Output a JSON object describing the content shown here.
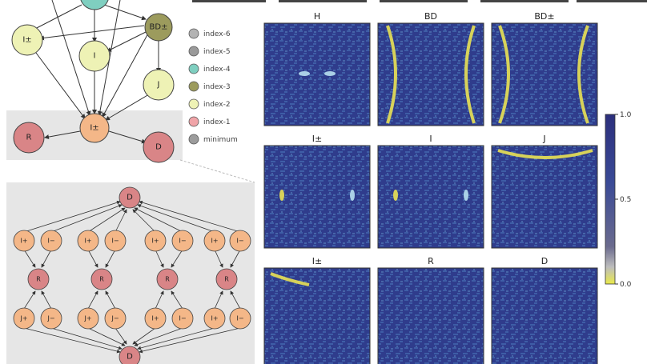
{
  "graph_top": {
    "nodes": [
      {
        "id": "n-index7",
        "label": "",
        "color": "#7fcfc0"
      },
      {
        "id": "n-BD_pm",
        "label": "BD±",
        "color": "#9c9b5d"
      },
      {
        "id": "n-I_pm",
        "label": "I±",
        "color": "#eef2b5"
      },
      {
        "id": "n-I",
        "label": "I",
        "color": "#eef2b5"
      },
      {
        "id": "n-J",
        "label": "J",
        "color": "#eef2b5"
      },
      {
        "id": "n-Ipm2",
        "label": "I±",
        "color": "#f4b788"
      },
      {
        "id": "n-R",
        "label": "R",
        "color": "#d98587"
      },
      {
        "id": "n-D",
        "label": "D",
        "color": "#d98587"
      }
    ]
  },
  "legend": {
    "items": [
      {
        "label": "index-6",
        "color": "#b3b3b3"
      },
      {
        "label": "index-5",
        "color": "#9a9a9a"
      },
      {
        "label": "index-4",
        "color": "#7fcfc0"
      },
      {
        "label": "index-3",
        "color": "#9c9b5d"
      },
      {
        "label": "index-2",
        "color": "#eef2b5"
      },
      {
        "label": "index-1",
        "color": "#f0a4a8"
      },
      {
        "label": "minimum",
        "color": "#9c9c9c"
      }
    ]
  },
  "graph_bottom": {
    "top_node": "D",
    "bottom_node": "D",
    "row1": [
      "I+",
      "I−",
      "I+",
      "I−",
      "I+",
      "I−",
      "I+",
      "I−"
    ],
    "row2": [
      "R",
      "R",
      "R",
      "R"
    ],
    "row3": [
      "J+",
      "J−",
      "J+",
      "J−",
      "I+",
      "I−",
      "I+",
      "I−"
    ]
  },
  "heatmaps": {
    "titles": [
      "H",
      "BD",
      "BD±",
      "I±",
      "I",
      "J",
      "I±",
      "R",
      "D"
    ]
  },
  "colorbar": {
    "ticks": [
      "1.0",
      "0.5",
      "0.0"
    ],
    "values": [
      1.0,
      0.5,
      0.0
    ]
  },
  "colors": {
    "panel_bg": "#e6e6e6",
    "heat_bg": "#2f3c8c",
    "heat_ring": "#d7d25a",
    "node_border": "#444444"
  }
}
